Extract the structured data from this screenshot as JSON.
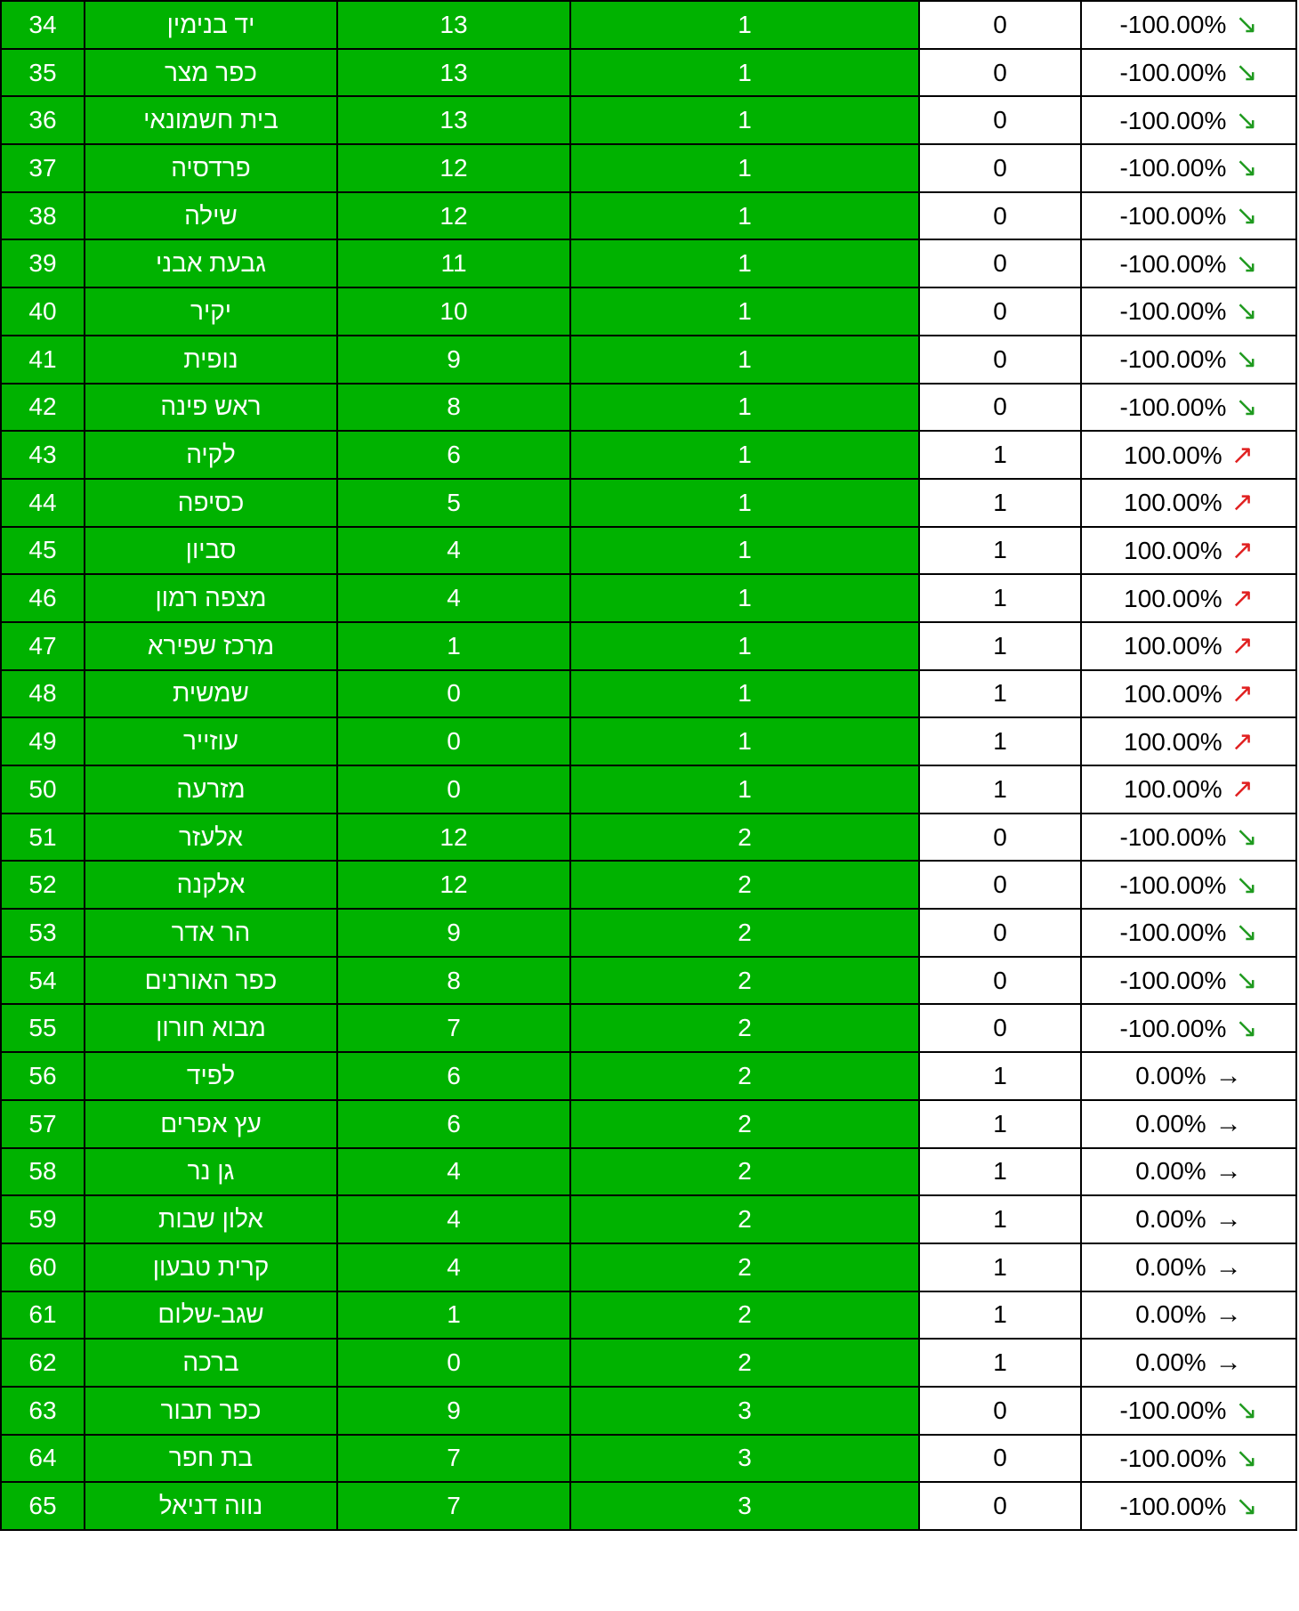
{
  "colors": {
    "green_cell": "#00b200",
    "arrow_down": "#1f9a1f",
    "arrow_up": "#e02020",
    "arrow_flat": "#000000"
  },
  "icons": {
    "down": "arrow-down-right-icon",
    "up": "arrow-up-right-icon",
    "flat": "arrow-right-icon"
  },
  "rows": [
    {
      "rank": "34",
      "name": "יד בנימין",
      "a": "13",
      "b": "1",
      "c": "0",
      "pct": "-100.00%",
      "trend": "down"
    },
    {
      "rank": "35",
      "name": "כפר מצר",
      "a": "13",
      "b": "1",
      "c": "0",
      "pct": "-100.00%",
      "trend": "down"
    },
    {
      "rank": "36",
      "name": "בית חשמונאי",
      "a": "13",
      "b": "1",
      "c": "0",
      "pct": "-100.00%",
      "trend": "down"
    },
    {
      "rank": "37",
      "name": "פרדסיה",
      "a": "12",
      "b": "1",
      "c": "0",
      "pct": "-100.00%",
      "trend": "down"
    },
    {
      "rank": "38",
      "name": "שילה",
      "a": "12",
      "b": "1",
      "c": "0",
      "pct": "-100.00%",
      "trend": "down"
    },
    {
      "rank": "39",
      "name": "גבעת אבני",
      "a": "11",
      "b": "1",
      "c": "0",
      "pct": "-100.00%",
      "trend": "down"
    },
    {
      "rank": "40",
      "name": "יקיר",
      "a": "10",
      "b": "1",
      "c": "0",
      "pct": "-100.00%",
      "trend": "down"
    },
    {
      "rank": "41",
      "name": "נופית",
      "a": "9",
      "b": "1",
      "c": "0",
      "pct": "-100.00%",
      "trend": "down"
    },
    {
      "rank": "42",
      "name": "ראש פינה",
      "a": "8",
      "b": "1",
      "c": "0",
      "pct": "-100.00%",
      "trend": "down"
    },
    {
      "rank": "43",
      "name": "לקיה",
      "a": "6",
      "b": "1",
      "c": "1",
      "pct": "100.00%",
      "trend": "up"
    },
    {
      "rank": "44",
      "name": "כסיפה",
      "a": "5",
      "b": "1",
      "c": "1",
      "pct": "100.00%",
      "trend": "up"
    },
    {
      "rank": "45",
      "name": "סביון",
      "a": "4",
      "b": "1",
      "c": "1",
      "pct": "100.00%",
      "trend": "up"
    },
    {
      "rank": "46",
      "name": "מצפה רמון",
      "a": "4",
      "b": "1",
      "c": "1",
      "pct": "100.00%",
      "trend": "up"
    },
    {
      "rank": "47",
      "name": "מרכז שפירא",
      "a": "1",
      "b": "1",
      "c": "1",
      "pct": "100.00%",
      "trend": "up"
    },
    {
      "rank": "48",
      "name": "שמשית",
      "a": "0",
      "b": "1",
      "c": "1",
      "pct": "100.00%",
      "trend": "up"
    },
    {
      "rank": "49",
      "name": "עוזייר",
      "a": "0",
      "b": "1",
      "c": "1",
      "pct": "100.00%",
      "trend": "up"
    },
    {
      "rank": "50",
      "name": "מזרעה",
      "a": "0",
      "b": "1",
      "c": "1",
      "pct": "100.00%",
      "trend": "up"
    },
    {
      "rank": "51",
      "name": "אלעזר",
      "a": "12",
      "b": "2",
      "c": "0",
      "pct": "-100.00%",
      "trend": "down"
    },
    {
      "rank": "52",
      "name": "אלקנה",
      "a": "12",
      "b": "2",
      "c": "0",
      "pct": "-100.00%",
      "trend": "down"
    },
    {
      "rank": "53",
      "name": "הר אדר",
      "a": "9",
      "b": "2",
      "c": "0",
      "pct": "-100.00%",
      "trend": "down"
    },
    {
      "rank": "54",
      "name": "כפר האורנים",
      "a": "8",
      "b": "2",
      "c": "0",
      "pct": "-100.00%",
      "trend": "down"
    },
    {
      "rank": "55",
      "name": "מבוא חורון",
      "a": "7",
      "b": "2",
      "c": "0",
      "pct": "-100.00%",
      "trend": "down"
    },
    {
      "rank": "56",
      "name": "לפיד",
      "a": "6",
      "b": "2",
      "c": "1",
      "pct": "0.00%",
      "trend": "flat"
    },
    {
      "rank": "57",
      "name": "עץ אפרים",
      "a": "6",
      "b": "2",
      "c": "1",
      "pct": "0.00%",
      "trend": "flat"
    },
    {
      "rank": "58",
      "name": "גן נר",
      "a": "4",
      "b": "2",
      "c": "1",
      "pct": "0.00%",
      "trend": "flat"
    },
    {
      "rank": "59",
      "name": "אלון שבות",
      "a": "4",
      "b": "2",
      "c": "1",
      "pct": "0.00%",
      "trend": "flat"
    },
    {
      "rank": "60",
      "name": "קרית טבעון",
      "a": "4",
      "b": "2",
      "c": "1",
      "pct": "0.00%",
      "trend": "flat"
    },
    {
      "rank": "61",
      "name": "שגב-שלום",
      "a": "1",
      "b": "2",
      "c": "1",
      "pct": "0.00%",
      "trend": "flat"
    },
    {
      "rank": "62",
      "name": "ברכה",
      "a": "0",
      "b": "2",
      "c": "1",
      "pct": "0.00%",
      "trend": "flat"
    },
    {
      "rank": "63",
      "name": "כפר תבור",
      "a": "9",
      "b": "3",
      "c": "0",
      "pct": "-100.00%",
      "trend": "down"
    },
    {
      "rank": "64",
      "name": "בת חפר",
      "a": "7",
      "b": "3",
      "c": "0",
      "pct": "-100.00%",
      "trend": "down"
    },
    {
      "rank": "65",
      "name": "נווה דניאל",
      "a": "7",
      "b": "3",
      "c": "0",
      "pct": "-100.00%",
      "trend": "down"
    }
  ]
}
